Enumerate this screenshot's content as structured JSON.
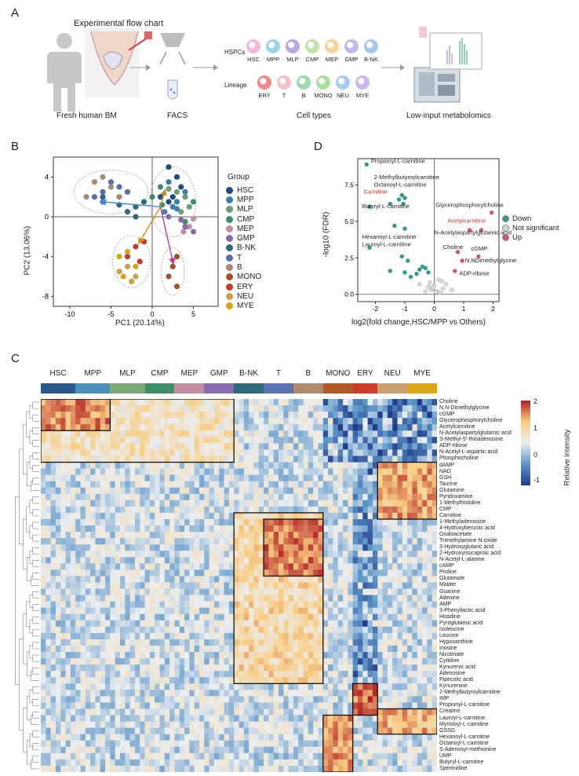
{
  "panelA": {
    "letter": "A",
    "flow_title": "Experimental flow chart",
    "fresh_bm": "Fresh human BM",
    "facs": "FACS",
    "cell_types": "Cell types",
    "metabolomics": "Low-input metabolomics",
    "hspcs_label": "HSPCs",
    "lineage_label": "Lineage",
    "hspcs": [
      {
        "name": "HSC",
        "color": "#f4b8d8"
      },
      {
        "name": "MPP",
        "color": "#9ad3e6"
      },
      {
        "name": "MLP",
        "color": "#b9a6e2"
      },
      {
        "name": "CMP",
        "color": "#bfe3a8"
      },
      {
        "name": "MEP",
        "color": "#f6d49a"
      },
      {
        "name": "GMP",
        "color": "#c3b8ee"
      },
      {
        "name": "B-NK",
        "color": "#a6c8ec"
      }
    ],
    "lineage": [
      {
        "name": "ERY",
        "color": "#f08a8a"
      },
      {
        "name": "T",
        "color": "#f4c0c8"
      },
      {
        "name": "B",
        "color": "#9fd9b0"
      },
      {
        "name": "MONO",
        "color": "#a9e0a0"
      },
      {
        "name": "NEU",
        "color": "#a9cdf0"
      },
      {
        "name": "MYE",
        "color": "#cdb6ec"
      }
    ]
  },
  "panelB": {
    "letter": "B",
    "xlabel": "PC1 (20.14%)",
    "ylabel": "PC2 (13.06%)",
    "legend_title": "Group",
    "xticks": [
      "-10",
      "-5",
      "0",
      "5"
    ],
    "yticks": [
      "4",
      "0",
      "-4",
      "-8"
    ]
  },
  "panelD": {
    "letter": "D",
    "xlabel": "log2(fold change,HSC/MPP vs Others)",
    "ylabel": "-log10 (FDR)",
    "xticks": [
      "-2",
      "-1",
      "0",
      "1",
      "2"
    ],
    "yticks": [
      "7.5",
      "5.0",
      "2.5",
      "0.0"
    ],
    "legend": [
      {
        "label": "Down",
        "color": "#2a9d8f"
      },
      {
        "label": "Not significant",
        "color": "#d8d8d8"
      },
      {
        "label": "Up",
        "color": "#d6546a"
      }
    ],
    "labels": {
      "propionyl": "Propionyl-L-carnitine",
      "methylbutyroyl": "2-Methylbutyroylcarnitine",
      "octanoyl": "Octanoyl-L-carnitine",
      "carnitine": "Carnitine",
      "butyryl": "Butyryl-L-carnitine",
      "hexanoyl": "Hexanoyl-L-carnitine",
      "lauroyl": "Lauroyl-L-carnitine",
      "gpc": "Glycerophosphorylcholine",
      "acetylcarnitine": "Acetylcarnitine",
      "naag": "N-Acetylaspartylglutamic acid",
      "choline": "Choline",
      "cgmp": "cGMP",
      "ndmg": "N,NDimethylglycine",
      "adpr": "ADP-ribose"
    }
  },
  "chart_data": [
    {
      "type": "scatter",
      "xlabel": "PC1 (20.14%)",
      "ylabel": "PC2 (13.06%)",
      "xlim": [
        -12,
        8
      ],
      "ylim": [
        -9,
        6
      ],
      "legend_title": "Group",
      "series": [
        {
          "name": "HSC",
          "color": "#1f4e79",
          "points": [
            [
              2,
              5
            ],
            [
              3,
              4
            ],
            [
              1,
              2
            ],
            [
              2,
              1.5
            ],
            [
              3.5,
              3
            ],
            [
              2.5,
              2
            ]
          ]
        },
        {
          "name": "MPP",
          "color": "#3d7fa8",
          "points": [
            [
              2,
              3.5
            ],
            [
              3,
              1.5
            ],
            [
              1.5,
              0.5
            ],
            [
              4,
              2.5
            ],
            [
              3,
              0.8
            ],
            [
              2.5,
              1
            ]
          ]
        },
        {
          "name": "MLP",
          "color": "#6a9e73",
          "points": [
            [
              4,
              2
            ],
            [
              3.5,
              0.5
            ],
            [
              4.5,
              1
            ],
            [
              3,
              2.5
            ],
            [
              2,
              2.8
            ]
          ]
        },
        {
          "name": "CMP",
          "color": "#3e8e6a",
          "points": [
            [
              0,
              2
            ],
            [
              1,
              3
            ],
            [
              4,
              -0.5
            ],
            [
              5,
              1.5
            ],
            [
              1.2,
              1.2
            ]
          ]
        },
        {
          "name": "MEP",
          "color": "#c48ea0",
          "points": [
            [
              4.5,
              -1
            ],
            [
              5,
              -0.2
            ],
            [
              3.8,
              -1.5
            ]
          ]
        },
        {
          "name": "GMP",
          "color": "#8a6bb0",
          "points": [
            [
              2,
              0
            ],
            [
              4,
              -1
            ],
            [
              5,
              -1.5
            ],
            [
              3.5,
              -0.3
            ]
          ]
        },
        {
          "name": "B-NK",
          "color": "#2f6a7a",
          "points": [
            [
              -6,
              2
            ],
            [
              -4,
              1.2
            ],
            [
              -2,
              0
            ],
            [
              -3,
              0.5
            ],
            [
              -1,
              1.5
            ],
            [
              -2,
              1
            ]
          ]
        },
        {
          "name": "T",
          "color": "#5a6ea8",
          "points": [
            [
              -5,
              3.5
            ],
            [
              -6,
              1.5
            ],
            [
              -7,
              2
            ],
            [
              -3,
              2.5
            ],
            [
              -4,
              3
            ],
            [
              -6,
              2.5
            ]
          ]
        },
        {
          "name": "B",
          "color": "#a58a78",
          "points": [
            [
              -7,
              3.5
            ],
            [
              -6,
              4
            ],
            [
              -5,
              3
            ],
            [
              -8,
              2
            ],
            [
              -4,
              2
            ]
          ]
        },
        {
          "name": "MONO",
          "color": "#a0522d",
          "points": [
            [
              2,
              -6
            ],
            [
              3,
              -7
            ],
            [
              2.5,
              -5
            ],
            [
              3,
              -4
            ]
          ]
        },
        {
          "name": "ERY",
          "color": "#c0392b",
          "points": [
            [
              -2,
              -3
            ],
            [
              -1,
              -2.5
            ],
            [
              -3,
              -4
            ],
            [
              -1.5,
              -4.5
            ]
          ]
        },
        {
          "name": "NEU",
          "color": "#c9a14a",
          "points": [
            [
              -3,
              -5
            ],
            [
              -2,
              -6
            ],
            [
              -4,
              -5.5
            ],
            [
              -2.5,
              -6.5
            ]
          ]
        },
        {
          "name": "MYE",
          "color": "#d4a517",
          "points": [
            [
              -4,
              -4
            ],
            [
              -3,
              -3.5
            ],
            [
              -2,
              -5
            ],
            [
              -3.5,
              -6
            ]
          ]
        }
      ]
    },
    {
      "type": "scatter",
      "xlabel": "log2(fold change,HSC/MPP vs Others)",
      "ylabel": "-log10 (FDR)",
      "xlim": [
        -2.6,
        2.2
      ],
      "ylim": [
        -0.5,
        9.3
      ],
      "series": [
        {
          "name": "Down",
          "color": "#2a9d8f",
          "points": [
            [
              -2.3,
              8.9
            ],
            [
              -1.2,
              6.5
            ],
            [
              -1.1,
              6.8
            ],
            [
              -1.0,
              6.6
            ],
            [
              -1.05,
              6.2
            ],
            [
              -1.5,
              6.2
            ],
            [
              -2.2,
              6.0
            ],
            [
              -1.35,
              4.7
            ],
            [
              -1.0,
              4.5
            ],
            [
              -2.2,
              3.2
            ],
            [
              -1.1,
              2.6
            ],
            [
              -0.9,
              2.3
            ],
            [
              -1.5,
              1.6
            ],
            [
              -0.5,
              1.7
            ],
            [
              -0.3,
              1.8
            ],
            [
              -0.6,
              1.4
            ],
            [
              -0.8,
              1.2
            ],
            [
              -0.2,
              1.5
            ],
            [
              -0.4,
              1.9
            ],
            [
              -1.0,
              1.5
            ]
          ]
        },
        {
          "name": "Not significant",
          "color": "#d8d8d8",
          "points": [
            [
              -0.1,
              0.3
            ],
            [
              0.1,
              0.2
            ],
            [
              -0.2,
              0.5
            ],
            [
              0.3,
              0.4
            ],
            [
              0.2,
              0.1
            ],
            [
              0.0,
              0.6
            ],
            [
              -0.3,
              0.2
            ],
            [
              0.4,
              0.7
            ],
            [
              -0.15,
              0.8
            ],
            [
              0.25,
              0.9
            ],
            [
              0.05,
              0.15
            ],
            [
              -0.05,
              0.45
            ],
            [
              0.6,
              0.3
            ],
            [
              -0.5,
              0.7
            ],
            [
              0.15,
              1.0
            ]
          ]
        },
        {
          "name": "Up",
          "color": "#d6546a",
          "points": [
            [
              1.95,
              5.6
            ],
            [
              1.2,
              4.4
            ],
            [
              1.6,
              4.4
            ],
            [
              0.8,
              2.9
            ],
            [
              0.95,
              2.3
            ],
            [
              1.5,
              2.6
            ],
            [
              0.7,
              1.6
            ]
          ]
        }
      ]
    },
    {
      "type": "heatmap",
      "title": "",
      "legend_title": "Relative intensity",
      "legend_ticks": [
        "2",
        "1",
        "0",
        "-1"
      ],
      "groups": [
        {
          "name": "HSC",
          "color": "#2a5a8a",
          "cols": 7
        },
        {
          "name": "MPP",
          "color": "#4a8fb8",
          "cols": 7
        },
        {
          "name": "MLP",
          "color": "#7aaa78",
          "cols": 7
        },
        {
          "name": "CMP",
          "color": "#3e8e6a",
          "cols": 6
        },
        {
          "name": "MEP",
          "color": "#c48ea0",
          "cols": 6
        },
        {
          "name": "GMP",
          "color": "#8a6bb0",
          "cols": 6
        },
        {
          "name": "B-NK",
          "color": "#2f6a7a",
          "cols": 6
        },
        {
          "name": "T",
          "color": "#5a74b0",
          "cols": 6
        },
        {
          "name": "B",
          "color": "#b08a6e",
          "cols": 6
        },
        {
          "name": "MONO",
          "color": "#b05a28",
          "cols": 6
        },
        {
          "name": "ERY",
          "color": "#d03a2a",
          "cols": 5
        },
        {
          "name": "NEU",
          "color": "#c9a170",
          "cols": 6
        },
        {
          "name": "MYE",
          "color": "#dca81a",
          "cols": 6
        }
      ],
      "rows": [
        "Choline",
        "N,N-Dimethylglycine",
        "cGMP",
        "Glycerophosphorylcholine",
        "Acetylcarnitine",
        "N-Acetylaspartylglutamic acid",
        "S-Methyl-5'-thioadenosine",
        "ADP-ribose",
        "N-Acetyl-L-aspartic acid",
        "Phosphocholine",
        "dAMP",
        "NAD",
        "GSH",
        "Taurine",
        "Glutamine",
        "Pyridoxamine",
        "1-Methylhistidine",
        "CMP",
        "Carnitine",
        "1-Methyladenosine",
        "4-Hydroxybenzoic acid",
        "Oxaloacetate",
        "Trimethylamine N-oxide",
        "3-Hydroxyglutaric acid",
        "2-Hydroxyisocaproic acid",
        "N-Acetyl-L-alanine",
        "cAMP",
        "Proline",
        "Glutamate",
        "Malate",
        "Guanine",
        "Adenine",
        "AMP",
        "3-Phenyllactic acid",
        "Histidine",
        "Pyroglutamic acid",
        "Isoleucine",
        "Leucine",
        "Hypoxanthine",
        "Inosine",
        "Nicotinate",
        "Cytidine",
        "Kynurenic acid",
        "Adenosine",
        "Pipecolic acid",
        "Kynurenine",
        "2-Methylbutyroylcarnitine",
        "IMP",
        "Propionyl-L-carnitine",
        "Creatine",
        "Lauroyl-L-carnitine",
        "Myristoyl-L-carnitine",
        "GSSG",
        "Hexanoyl-L-carnitine",
        "Octanoyl-L-carnitine",
        "S-Adenosyl-methionine",
        "UMP",
        "Butyryl-L-carnitine",
        "Spermidine"
      ],
      "blocks": [
        {
          "rows": [
            0,
            9
          ],
          "groups": [
            0,
            5
          ],
          "value": 0.8
        },
        {
          "rows": [
            0,
            4
          ],
          "groups": [
            0,
            1
          ],
          "value": 1.8
        },
        {
          "rows": [
            10,
            18
          ],
          "groups": [
            11,
            12
          ],
          "value": 1.6
        },
        {
          "rows": [
            18,
            44
          ],
          "groups": [
            6,
            8
          ],
          "value": 1.0
        },
        {
          "rows": [
            19,
            27
          ],
          "groups": [
            7,
            8
          ],
          "value": 1.9
        },
        {
          "rows": [
            45,
            49
          ],
          "groups": [
            10,
            10
          ],
          "value": 2.0
        },
        {
          "rows": [
            49,
            52
          ],
          "groups": [
            11,
            12
          ],
          "value": 1.5
        },
        {
          "rows": [
            50,
            58
          ],
          "groups": [
            9,
            9
          ],
          "value": 1.7
        }
      ]
    }
  ],
  "panelC": {
    "letter": "C"
  }
}
